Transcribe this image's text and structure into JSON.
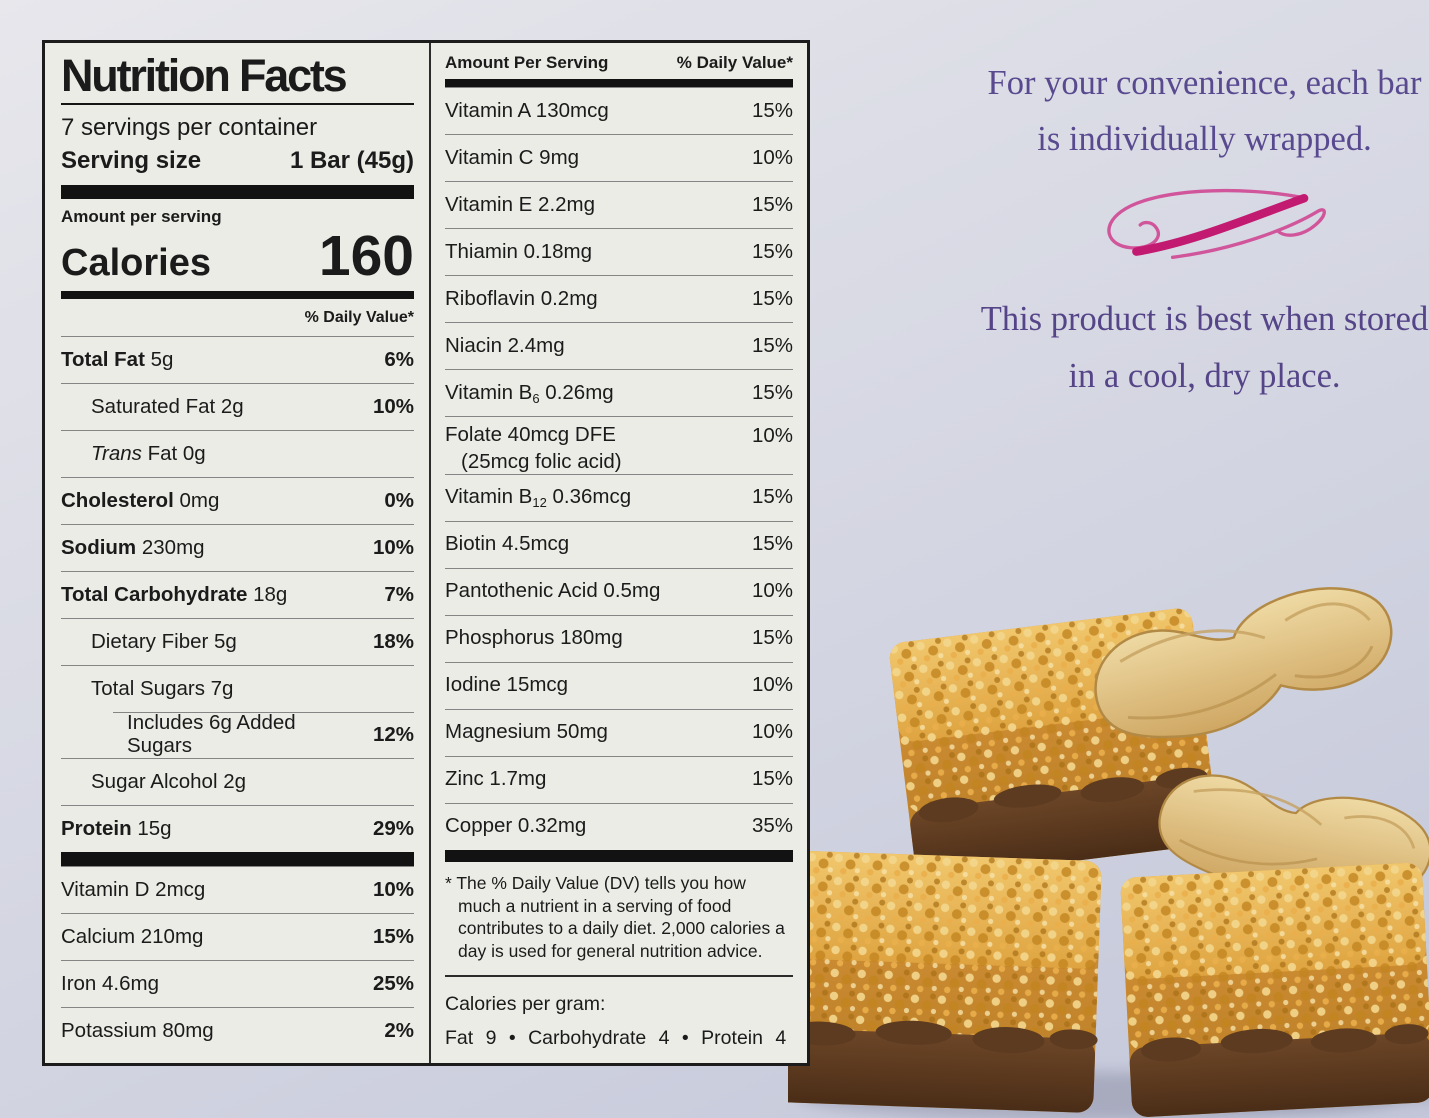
{
  "colors": {
    "label_background": "#ebece6",
    "label_border": "#1c1c1c",
    "accent_purple": "#594a90",
    "accent_pink": "#c21a70",
    "background_lavender": "#c3c7d9",
    "bar_crisp_gold": "#e0a848",
    "bar_chocolate": "#5d3b20",
    "peanut_shell": "#e6cd96"
  },
  "nutrition_label": {
    "title": "Nutrition Facts",
    "servings_per_container": "7 servings per container",
    "serving_size_label": "Serving size",
    "serving_size_value": "1 Bar (45g)",
    "amount_per_serving": "Amount per serving",
    "calories_label": "Calories",
    "calories_value": "160",
    "daily_value_header": "% Daily Value*",
    "main_rows": [
      {
        "parts": [
          {
            "t": "Total Fat",
            "s": "b"
          },
          {
            "t": " 5g"
          }
        ],
        "dv": "6%"
      },
      {
        "ind": 1,
        "parts": [
          {
            "t": "Saturated Fat 2g"
          }
        ],
        "dv": "10%"
      },
      {
        "ind": 1,
        "parts": [
          {
            "t": "Trans",
            "s": "i"
          },
          {
            "t": " Fat 0g"
          }
        ],
        "dv": ""
      },
      {
        "parts": [
          {
            "t": "Cholesterol",
            "s": "b"
          },
          {
            "t": " 0mg"
          }
        ],
        "dv": "0%"
      },
      {
        "parts": [
          {
            "t": "Sodium",
            "s": "b"
          },
          {
            "t": " 230mg"
          }
        ],
        "dv": "10%"
      },
      {
        "parts": [
          {
            "t": "Total Carbohydrate",
            "s": "b"
          },
          {
            "t": " 18g"
          }
        ],
        "dv": "7%"
      },
      {
        "ind": 1,
        "parts": [
          {
            "t": "Dietary Fiber 5g"
          }
        ],
        "dv": "18%"
      },
      {
        "ind": 1,
        "parts": [
          {
            "t": "Total Sugars 7g"
          }
        ],
        "dv": ""
      },
      {
        "ind": 2,
        "inset": true,
        "parts": [
          {
            "t": "Includes 6g Added Sugars"
          }
        ],
        "dv": "12%"
      },
      {
        "ind": 1,
        "parts": [
          {
            "t": "Sugar Alcohol 2g"
          }
        ],
        "dv": ""
      },
      {
        "parts": [
          {
            "t": "Protein",
            "s": "b"
          },
          {
            "t": " 15g"
          }
        ],
        "dv": "29%"
      }
    ],
    "mineral_rows": [
      {
        "parts": [
          {
            "t": "Vitamin D 2mcg"
          }
        ],
        "dv": "10%"
      },
      {
        "parts": [
          {
            "t": "Calcium 210mg"
          }
        ],
        "dv": "15%"
      },
      {
        "parts": [
          {
            "t": "Iron 4.6mg"
          }
        ],
        "dv": "25%"
      },
      {
        "parts": [
          {
            "t": "Potassium 80mg"
          }
        ],
        "dv": "2%"
      }
    ],
    "right_column": {
      "header_left": "Amount Per Serving",
      "header_right": "% Daily Value*",
      "rows": [
        {
          "parts": [
            {
              "t": "Vitamin A 130mcg"
            }
          ],
          "dv": "15%"
        },
        {
          "parts": [
            {
              "t": "Vitamin C 9mg"
            }
          ],
          "dv": "10%"
        },
        {
          "parts": [
            {
              "t": "Vitamin E 2.2mg"
            }
          ],
          "dv": "15%"
        },
        {
          "parts": [
            {
              "t": "Thiamin 0.18mg"
            }
          ],
          "dv": "15%"
        },
        {
          "parts": [
            {
              "t": "Riboflavin 0.2mg"
            }
          ],
          "dv": "15%"
        },
        {
          "parts": [
            {
              "t": "Niacin 2.4mg"
            }
          ],
          "dv": "15%"
        },
        {
          "parts": [
            {
              "t": "Vitamin B"
            },
            {
              "t": "6",
              "s": "sub"
            },
            {
              "t": " 0.26mg"
            }
          ],
          "dv": "15%"
        },
        {
          "cls": "top",
          "parts": [
            {
              "t": "Folate 40mcg DFE"
            }
          ],
          "line2": "(25mcg folic acid)",
          "dv": "10%"
        },
        {
          "parts": [
            {
              "t": "Vitamin B"
            },
            {
              "t": "12",
              "s": "sub"
            },
            {
              "t": " 0.36mcg"
            }
          ],
          "dv": "15%"
        },
        {
          "parts": [
            {
              "t": "Biotin 4.5mcg"
            }
          ],
          "dv": "15%"
        },
        {
          "parts": [
            {
              "t": "Pantothenic Acid 0.5mg"
            }
          ],
          "dv": "10%"
        },
        {
          "parts": [
            {
              "t": "Phosphorus 180mg"
            }
          ],
          "dv": "15%"
        },
        {
          "parts": [
            {
              "t": "Iodine 15mcg"
            }
          ],
          "dv": "10%"
        },
        {
          "parts": [
            {
              "t": "Magnesium 50mg"
            }
          ],
          "dv": "10%"
        },
        {
          "parts": [
            {
              "t": "Zinc 1.7mg"
            }
          ],
          "dv": "15%"
        },
        {
          "parts": [
            {
              "t": "Copper 0.32mg"
            }
          ],
          "dv": "35%"
        }
      ],
      "footnote": "* The % Daily Value (DV) tells you how much a nutrient in a serving of food contributes to a daily diet. 2,000 calories a day is used for general nutrition advice.",
      "calories_per_gram_label": "Calories per gram:",
      "calories_per_gram_value": "Fat 9  •  Carbohydrate 4  •  Protein 4"
    }
  },
  "side_panel": {
    "message_1": "For your convenience, each bar is individually wrapped.",
    "message_2": "This product is best when stored in a cool, dry place."
  },
  "photo": {
    "subject": "chocolate-dipped crispy peanut bars stacked with two peanuts in shell"
  }
}
